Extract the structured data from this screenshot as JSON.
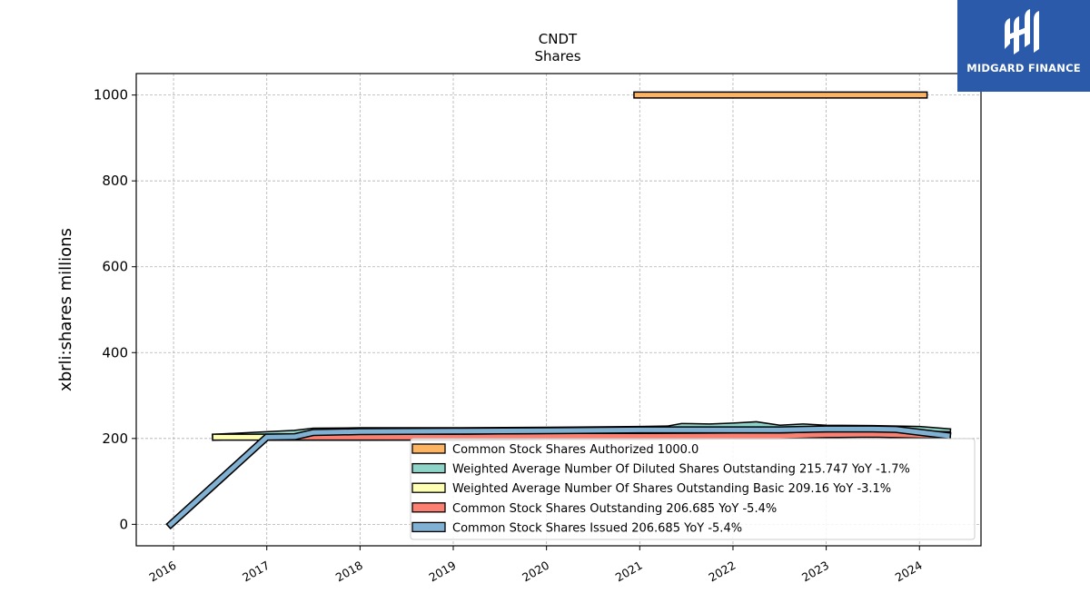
{
  "chart_data": {
    "type": "line",
    "title": "CNDT",
    "subtitle": "Shares",
    "ylabel": "xbrli:shares millions",
    "xlabel": "",
    "xlim": [
      2015.6,
      2024.66
    ],
    "ylim": [
      -50,
      1050
    ],
    "x_ticks": [
      "2016",
      "2017",
      "2018",
      "2019",
      "2020",
      "2021",
      "2022",
      "2023",
      "2024"
    ],
    "y_ticks": [
      0,
      200,
      400,
      600,
      800,
      1000
    ],
    "grid": true,
    "legend_position": "lower-right",
    "series": [
      {
        "name": "Common Stock Shares Authorized",
        "legend": "Common Stock Shares Authorized  1000.0",
        "color": "#fdb462",
        "points": [
          [
            2020.97,
            1000
          ],
          [
            2024.05,
            1000
          ]
        ]
      },
      {
        "name": "Weighted Average Number Of Diluted Shares Outstanding",
        "legend": "Weighted Average Number Of Diluted Shares Outstanding  215.747 YoY -1.7%",
        "color": "#8dd3c7",
        "points": [
          [
            2016.45,
            203
          ],
          [
            2017.0,
            209
          ],
          [
            2017.3,
            212
          ],
          [
            2017.5,
            217
          ],
          [
            2018.0,
            218
          ],
          [
            2019.0,
            218
          ],
          [
            2020.0,
            219
          ],
          [
            2021.0,
            221
          ],
          [
            2021.3,
            222
          ],
          [
            2021.45,
            228
          ],
          [
            2021.75,
            227
          ],
          [
            2022.0,
            229
          ],
          [
            2022.25,
            232
          ],
          [
            2022.5,
            224
          ],
          [
            2022.75,
            227
          ],
          [
            2023.0,
            224
          ],
          [
            2023.5,
            223
          ],
          [
            2024.0,
            221
          ],
          [
            2024.3,
            216
          ]
        ]
      },
      {
        "name": "Weighted Average Number Of Shares Outstanding Basic",
        "legend": "Weighted Average Number Of Shares Outstanding Basic  209.16 YoY -3.1%",
        "color": "#ffffb3",
        "points": [
          [
            2016.45,
            203
          ],
          [
            2017.0,
            203
          ],
          [
            2018.0,
            203
          ],
          [
            2019.0,
            204
          ],
          [
            2020.0,
            205
          ],
          [
            2021.0,
            207
          ],
          [
            2022.0,
            210
          ],
          [
            2023.0,
            213
          ],
          [
            2023.7,
            212
          ],
          [
            2024.3,
            209
          ]
        ]
      },
      {
        "name": "Common Stock Shares Outstanding",
        "legend": "Common Stock Shares Outstanding  206.685 YoY -5.4%",
        "color": "#fb8072",
        "points": [
          [
            2015.97,
            0
          ],
          [
            2017.0,
            203
          ],
          [
            2018.0,
            203
          ],
          [
            2019.0,
            203
          ],
          [
            2020.0,
            205
          ],
          [
            2021.0,
            205
          ],
          [
            2022.0,
            206
          ],
          [
            2022.5,
            206
          ],
          [
            2023.0,
            209
          ],
          [
            2023.5,
            210
          ],
          [
            2023.75,
            209
          ],
          [
            2024.3,
            206.685
          ]
        ]
      },
      {
        "name": "Common Stock Shares Issued",
        "legend": "Common Stock Shares Issued  206.685 YoY -5.4%",
        "color": "#80b1d3",
        "points": [
          [
            2015.97,
            0
          ],
          [
            2017.0,
            203
          ],
          [
            2017.3,
            204
          ],
          [
            2017.5,
            214
          ],
          [
            2018.0,
            216
          ],
          [
            2019.0,
            217
          ],
          [
            2020.0,
            218
          ],
          [
            2021.0,
            220
          ],
          [
            2022.0,
            220
          ],
          [
            2022.5,
            220
          ],
          [
            2023.0,
            222
          ],
          [
            2023.5,
            222
          ],
          [
            2023.75,
            221
          ],
          [
            2024.3,
            206.685
          ]
        ]
      }
    ]
  },
  "logo": {
    "text": "MIDGARD FINANCE"
  }
}
